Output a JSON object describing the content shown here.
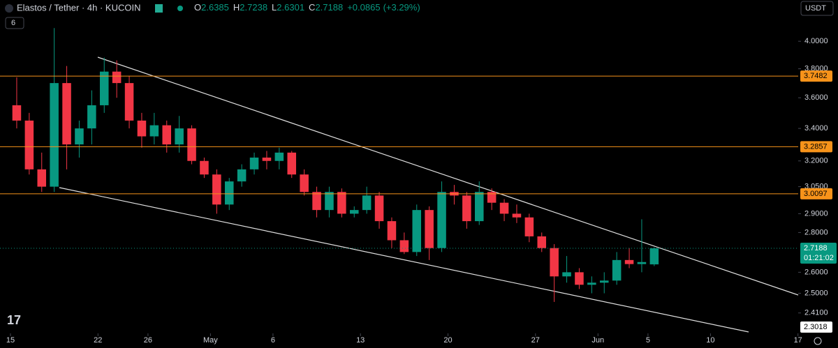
{
  "header": {
    "symbol": "Elastos / Tether · 4h · KUCOIN",
    "ohlc_prefixes": [
      "O",
      "H",
      "L",
      "C"
    ],
    "change": "+0.0865",
    "change_pct": "(+3.29%)",
    "currency": "USDT",
    "indicators": "6",
    "countdown": "01:21:02"
  },
  "chart_data": {
    "type": "candlestick",
    "log": true,
    "up_color": "#089981",
    "down_color": "#f23645",
    "level_color": "#f7931a",
    "ylim": [
      2.32,
      4.32
    ],
    "yticks": [
      {
        "value": 4,
        "label": "4.0000"
      },
      {
        "value": 3.8,
        "label": "3.8000"
      },
      {
        "value": 3.6,
        "label": "3.6000"
      },
      {
        "value": 3.4,
        "label": "3.4000"
      },
      {
        "value": 3.2,
        "label": "3.2000"
      },
      {
        "value": 3.05,
        "label": "3.0500"
      },
      {
        "value": 2.9,
        "label": "2.9000"
      },
      {
        "value": 2.8,
        "label": "2.8000"
      },
      {
        "value": 2.6,
        "label": "2.6000"
      },
      {
        "value": 2.5,
        "label": "2.5000"
      },
      {
        "value": 2.41,
        "label": "2.4100"
      }
    ],
    "xticks": [
      {
        "value": 0,
        "label": "15"
      },
      {
        "value": 7,
        "label": "22"
      },
      {
        "value": 11,
        "label": "26"
      },
      {
        "value": 16,
        "label": "May"
      },
      {
        "value": 21,
        "label": "6"
      },
      {
        "value": 28,
        "label": "13"
      },
      {
        "value": 35,
        "label": "20"
      },
      {
        "value": 42,
        "label": "27"
      },
      {
        "value": 47,
        "label": "Jun"
      },
      {
        "value": 51,
        "label": "5"
      },
      {
        "value": 56,
        "label": "10"
      },
      {
        "value": 63,
        "label": "17"
      }
    ],
    "levels": [
      3.7482,
      3.2857,
      3.0097
    ],
    "trendline_price": 2.3018,
    "candles": [
      {
        "o": 3.55,
        "h": 3.74,
        "l": 3.4,
        "c": 3.45
      },
      {
        "o": 3.45,
        "h": 3.5,
        "l": 3.12,
        "c": 3.15
      },
      {
        "o": 3.15,
        "h": 3.25,
        "l": 3.02,
        "c": 3.05
      },
      {
        "o": 3.05,
        "h": 4.1,
        "l": 3.02,
        "c": 3.7
      },
      {
        "o": 3.7,
        "h": 3.82,
        "l": 3.15,
        "c": 3.3
      },
      {
        "o": 3.3,
        "h": 3.45,
        "l": 3.22,
        "c": 3.4
      },
      {
        "o": 3.4,
        "h": 3.65,
        "l": 3.3,
        "c": 3.55
      },
      {
        "o": 3.55,
        "h": 3.88,
        "l": 3.5,
        "c": 3.78
      },
      {
        "o": 3.78,
        "h": 3.86,
        "l": 3.6,
        "c": 3.7
      },
      {
        "o": 3.7,
        "h": 3.75,
        "l": 3.4,
        "c": 3.45
      },
      {
        "o": 3.45,
        "h": 3.5,
        "l": 3.28,
        "c": 3.35
      },
      {
        "o": 3.35,
        "h": 3.5,
        "l": 3.3,
        "c": 3.42
      },
      {
        "o": 3.42,
        "h": 3.45,
        "l": 3.25,
        "c": 3.3
      },
      {
        "o": 3.3,
        "h": 3.48,
        "l": 3.25,
        "c": 3.4
      },
      {
        "o": 3.4,
        "h": 3.42,
        "l": 3.18,
        "c": 3.2
      },
      {
        "o": 3.2,
        "h": 3.22,
        "l": 3.1,
        "c": 3.12
      },
      {
        "o": 3.12,
        "h": 3.15,
        "l": 2.9,
        "c": 2.95
      },
      {
        "o": 2.95,
        "h": 3.1,
        "l": 2.92,
        "c": 3.08
      },
      {
        "o": 3.08,
        "h": 3.18,
        "l": 3.05,
        "c": 3.15
      },
      {
        "o": 3.15,
        "h": 3.25,
        "l": 3.12,
        "c": 3.22
      },
      {
        "o": 3.22,
        "h": 3.26,
        "l": 3.15,
        "c": 3.2
      },
      {
        "o": 3.2,
        "h": 3.28,
        "l": 3.15,
        "c": 3.25
      },
      {
        "o": 3.25,
        "h": 3.26,
        "l": 3.1,
        "c": 3.12
      },
      {
        "o": 3.12,
        "h": 3.15,
        "l": 3.0,
        "c": 3.02
      },
      {
        "o": 3.02,
        "h": 3.05,
        "l": 2.88,
        "c": 2.92
      },
      {
        "o": 2.92,
        "h": 3.05,
        "l": 2.88,
        "c": 3.02
      },
      {
        "o": 3.02,
        "h": 3.04,
        "l": 2.88,
        "c": 2.9
      },
      {
        "o": 2.9,
        "h": 2.94,
        "l": 2.88,
        "c": 2.92
      },
      {
        "o": 2.92,
        "h": 3.05,
        "l": 2.9,
        "c": 3.0
      },
      {
        "o": 3.0,
        "h": 3.02,
        "l": 2.82,
        "c": 2.86
      },
      {
        "o": 2.86,
        "h": 2.88,
        "l": 2.72,
        "c": 2.76
      },
      {
        "o": 2.76,
        "h": 2.8,
        "l": 2.69,
        "c": 2.7
      },
      {
        "o": 2.7,
        "h": 2.95,
        "l": 2.68,
        "c": 2.92
      },
      {
        "o": 2.92,
        "h": 2.94,
        "l": 2.66,
        "c": 2.72
      },
      {
        "o": 2.72,
        "h": 3.08,
        "l": 2.7,
        "c": 3.02
      },
      {
        "o": 3.02,
        "h": 3.06,
        "l": 2.95,
        "c": 3.0
      },
      {
        "o": 3.0,
        "h": 3.02,
        "l": 2.82,
        "c": 2.86
      },
      {
        "o": 2.86,
        "h": 3.08,
        "l": 2.84,
        "c": 3.02
      },
      {
        "o": 3.02,
        "h": 3.04,
        "l": 2.92,
        "c": 2.96
      },
      {
        "o": 2.96,
        "h": 2.98,
        "l": 2.86,
        "c": 2.9
      },
      {
        "o": 2.9,
        "h": 2.95,
        "l": 2.85,
        "c": 2.88
      },
      {
        "o": 2.88,
        "h": 2.9,
        "l": 2.75,
        "c": 2.78
      },
      {
        "o": 2.78,
        "h": 2.8,
        "l": 2.7,
        "c": 2.72
      },
      {
        "o": 2.72,
        "h": 2.74,
        "l": 2.46,
        "c": 2.58
      },
      {
        "o": 2.58,
        "h": 2.68,
        "l": 2.55,
        "c": 2.6
      },
      {
        "o": 2.6,
        "h": 2.62,
        "l": 2.52,
        "c": 2.54
      },
      {
        "o": 2.54,
        "h": 2.58,
        "l": 2.5,
        "c": 2.55
      },
      {
        "o": 2.55,
        "h": 2.6,
        "l": 2.5,
        "c": 2.56
      },
      {
        "o": 2.56,
        "h": 2.7,
        "l": 2.54,
        "c": 2.66
      },
      {
        "o": 2.66,
        "h": 2.72,
        "l": 2.62,
        "c": 2.64
      },
      {
        "o": 2.64,
        "h": 2.87,
        "l": 2.6,
        "c": 2.65
      },
      {
        "o": 2.6385,
        "h": 2.7238,
        "l": 2.6301,
        "c": 2.7188
      }
    ]
  }
}
